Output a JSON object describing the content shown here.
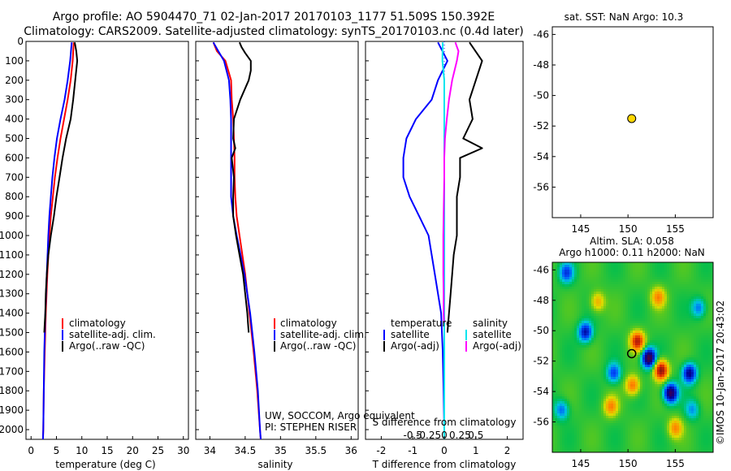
{
  "header": {
    "line1": "Argo profile: AO 5904470_71 02-Jan-2017 20170103_1177 51.509S 150.392E",
    "line2": "Climatology: CARS2009. Satellite-adjusted climatology: synTS_20170103.nc (0.4d later)"
  },
  "colors": {
    "climatology": "#ff0000",
    "satellite": "#0000ff",
    "argo": "#000000",
    "satellite_s": "#00e5ee",
    "argo_s": "#ff00ff"
  },
  "panels": {
    "temperature": {
      "xlabel": "temperature (deg C)",
      "legend": [
        "climatology",
        "satellite-adj. clim.",
        "Argo(..raw -QC)"
      ]
    },
    "salinity": {
      "xlabel": "salinity",
      "legend": [
        "climatology",
        "satellite-adj. clim.",
        "Argo(..raw -QC)"
      ],
      "note1": "UW, SOCCOM, Argo equivalent",
      "note2": "PI: STEPHEN RISER"
    },
    "difference": {
      "xlabel": "T difference from climatology",
      "top_label": "S difference from climatology",
      "legend_t_title": "temperature",
      "legend_s_title": "salinity",
      "legend_t": [
        "satellite",
        "Argo(-adj)"
      ],
      "legend_s": [
        "satellite",
        "Argo(-adj)"
      ]
    },
    "sst": {
      "title": "sat. SST: NaN Argo: 10.3"
    },
    "sla": {
      "title1": "Altim. SLA: 0.058",
      "title2": "Argo h1000: 0.11 h2000: NaN"
    }
  },
  "credit": "©IMOS 10-Jan-2017 20:43:02",
  "chart_data": [
    {
      "type": "line",
      "title": "temperature profile",
      "xlabel": "temperature (deg C)",
      "ylabel": "",
      "xlim": [
        -1,
        31
      ],
      "ylim": [
        2050,
        0
      ],
      "xticks": [
        0,
        5,
        10,
        15,
        20,
        25,
        30
      ],
      "yticks": [
        0,
        100,
        200,
        300,
        400,
        500,
        600,
        700,
        800,
        900,
        1000,
        1100,
        1200,
        1300,
        1400,
        1500,
        1600,
        1700,
        1800,
        1900,
        2000
      ],
      "series": [
        {
          "name": "climatology",
          "color": "#ff0000",
          "depth": [
            5,
            100,
            200,
            300,
            400,
            500,
            600,
            700,
            800,
            900,
            1000,
            1200,
            1400,
            1600,
            1800,
            2000,
            2050
          ],
          "values": [
            8.4,
            8.2,
            7.8,
            7.2,
            6.5,
            5.8,
            5.2,
            4.7,
            4.3,
            3.9,
            3.6,
            3.2,
            2.9,
            2.7,
            2.5,
            2.4,
            2.35
          ]
        },
        {
          "name": "satellite-adj. clim.",
          "color": "#0000ff",
          "depth": [
            5,
            100,
            200,
            300,
            400,
            500,
            600,
            700,
            800,
            900,
            1000,
            1200,
            1400,
            1600,
            1800,
            2000,
            2050
          ],
          "values": [
            8.0,
            7.7,
            7.2,
            6.6,
            5.8,
            5.1,
            4.6,
            4.2,
            3.9,
            3.6,
            3.4,
            3.1,
            2.8,
            2.6,
            2.5,
            2.4,
            2.35
          ]
        },
        {
          "name": "Argo(..raw -QC)",
          "color": "#000000",
          "depth": [
            5,
            50,
            100,
            200,
            300,
            400,
            500,
            600,
            700,
            800,
            900,
            1000,
            1100,
            1200,
            1300,
            1400,
            1450,
            1500
          ],
          "values": [
            8.6,
            8.9,
            9.1,
            8.7,
            8.3,
            7.8,
            6.9,
            6.2,
            5.6,
            5.0,
            4.5,
            3.9,
            3.4,
            3.1,
            2.9,
            2.8,
            2.7,
            2.6
          ]
        }
      ]
    },
    {
      "type": "line",
      "title": "salinity profile",
      "xlabel": "salinity",
      "ylabel": "",
      "xlim": [
        33.8,
        36.1
      ],
      "ylim": [
        2050,
        0
      ],
      "xticks": [
        34,
        34.5,
        35,
        35.5,
        36
      ],
      "series": [
        {
          "name": "climatology",
          "color": "#ff0000",
          "depth": [
            5,
            50,
            100,
            200,
            300,
            400,
            500,
            600,
            700,
            800,
            900,
            1000,
            1200,
            1400,
            1600,
            1800,
            2000,
            2050
          ],
          "values": [
            34.05,
            34.1,
            34.22,
            34.3,
            34.31,
            34.33,
            34.34,
            34.35,
            34.35,
            34.36,
            34.38,
            34.42,
            34.5,
            34.56,
            34.62,
            34.67,
            34.71,
            34.72
          ]
        },
        {
          "name": "satellite-adj. clim.",
          "color": "#0000ff",
          "depth": [
            5,
            50,
            100,
            200,
            300,
            400,
            500,
            600,
            700,
            800,
            900,
            1000,
            1200,
            1400,
            1600,
            1800,
            2000,
            2050
          ],
          "values": [
            34.05,
            34.12,
            34.2,
            34.27,
            34.29,
            34.3,
            34.3,
            34.3,
            34.3,
            34.3,
            34.33,
            34.38,
            34.49,
            34.57,
            34.63,
            34.68,
            34.71,
            34.72
          ]
        },
        {
          "name": "Argo(..raw -QC)",
          "color": "#000000",
          "depth": [
            5,
            30,
            60,
            100,
            150,
            200,
            300,
            400,
            500,
            550,
            600,
            700,
            800,
            900,
            1000,
            1100,
            1200,
            1300,
            1400,
            1450,
            1500
          ],
          "values": [
            34.42,
            34.45,
            34.5,
            34.58,
            34.58,
            34.55,
            34.43,
            34.34,
            34.33,
            34.36,
            34.31,
            34.34,
            34.33,
            34.33,
            34.37,
            34.42,
            34.47,
            34.5,
            34.53,
            34.54,
            34.55
          ]
        }
      ]
    },
    {
      "type": "line",
      "title": "difference from climatology",
      "xlabel": "T difference from climatology",
      "ylabel": "",
      "xlim": [
        -2.5,
        2.5
      ],
      "ylim": [
        2050,
        0
      ],
      "xticks": [
        -2,
        -1,
        0,
        1,
        2
      ],
      "top_ticks": [
        "-0.5",
        "-0.25",
        "0",
        "0.25",
        "0.5"
      ],
      "series": [
        {
          "name": "temperature satellite",
          "color": "#0000ff",
          "depth": [
            5,
            100,
            200,
            300,
            400,
            500,
            600,
            700,
            800,
            900,
            1000,
            1200,
            1400,
            1600,
            1800,
            2000,
            2050
          ],
          "values": [
            -0.2,
            0.1,
            -0.2,
            -0.4,
            -0.9,
            -1.2,
            -1.3,
            -1.3,
            -1.1,
            -0.8,
            -0.5,
            -0.3,
            -0.1,
            -0.05,
            -0.02,
            0.0,
            0.0
          ]
        },
        {
          "name": "temperature Argo(-adj)",
          "color": "#000000",
          "depth": [
            5,
            100,
            200,
            300,
            400,
            500,
            550,
            600,
            700,
            800,
            900,
            1000,
            1100,
            1200,
            1300,
            1400,
            1500
          ],
          "values": [
            0.8,
            1.2,
            1.0,
            0.8,
            0.9,
            0.6,
            1.2,
            0.5,
            0.5,
            0.4,
            0.4,
            0.4,
            0.3,
            0.25,
            0.2,
            0.15,
            0.1
          ]
        },
        {
          "name": "salinity satellite",
          "color": "#00e5ee",
          "depth": [
            5,
            100,
            200,
            400,
            600,
            800,
            1000,
            1200,
            1400,
            1600,
            1800,
            2000,
            2050
          ],
          "values": [
            -0.05,
            -0.06,
            0.0,
            0.0,
            0.0,
            0.0,
            0.0,
            0.0,
            0.0,
            0.0,
            0.0,
            0.0,
            0.0
          ]
        },
        {
          "name": "salinity Argo(-adj)",
          "color": "#ff00ff",
          "depth": [
            5,
            50,
            100,
            200,
            300,
            400,
            500,
            600,
            700,
            800,
            900,
            1000,
            1100,
            1200,
            1300,
            1400,
            1450
          ],
          "values": [
            0.35,
            0.45,
            0.4,
            0.25,
            0.15,
            0.08,
            0.02,
            0.0,
            0.0,
            -0.01,
            -0.02,
            -0.03,
            -0.03,
            -0.03,
            -0.02,
            -0.02,
            -0.01
          ]
        }
      ]
    },
    {
      "type": "scatter",
      "title": "sat. SST: NaN Argo: 10.3",
      "xlim": [
        142,
        159
      ],
      "ylim": [
        -58,
        -45.5
      ],
      "xticks": [
        145,
        150,
        155
      ],
      "yticks": [
        -46,
        -48,
        -50,
        -52,
        -54,
        -56
      ],
      "points": [
        {
          "x": 150.392,
          "y": -51.509,
          "color": "#ffd700"
        }
      ]
    },
    {
      "type": "heatmap",
      "title": "Altim. SLA: 0.058 / Argo h1000: 0.11 h2000: NaN",
      "xlim": [
        142,
        159
      ],
      "ylim": [
        -58,
        -45.5
      ],
      "xticks": [
        145,
        150,
        155
      ],
      "yticks": [
        -46,
        -48,
        -50,
        -52,
        -54,
        -56
      ],
      "points": [
        {
          "x": 150.392,
          "y": -51.509,
          "marker": "open-circle"
        }
      ],
      "features": [
        {
          "x": 151.0,
          "y": -50.7,
          "amp": 1.0
        },
        {
          "x": 152.2,
          "y": -51.8,
          "amp": -1.2
        },
        {
          "x": 153.5,
          "y": -52.6,
          "amp": 1.2
        },
        {
          "x": 154.5,
          "y": -54.1,
          "amp": -1.1
        },
        {
          "x": 156.5,
          "y": -52.8,
          "amp": -0.9
        },
        {
          "x": 145.5,
          "y": -50.1,
          "amp": -0.8
        },
        {
          "x": 143.5,
          "y": -46.2,
          "amp": -0.6
        },
        {
          "x": 148.5,
          "y": -52.8,
          "amp": -0.6
        },
        {
          "x": 150.5,
          "y": -53.6,
          "amp": 0.7
        },
        {
          "x": 148.2,
          "y": -55.0,
          "amp": 0.6
        },
        {
          "x": 155.0,
          "y": -56.4,
          "amp": 0.6
        },
        {
          "x": 153.2,
          "y": -47.8,
          "amp": 0.6
        },
        {
          "x": 143.0,
          "y": -55.2,
          "amp": -0.5
        },
        {
          "x": 157.5,
          "y": -48.5,
          "amp": -0.5
        },
        {
          "x": 146.8,
          "y": -48.1,
          "amp": 0.5
        },
        {
          "x": 156.8,
          "y": -55.2,
          "amp": -0.4
        }
      ]
    }
  ]
}
